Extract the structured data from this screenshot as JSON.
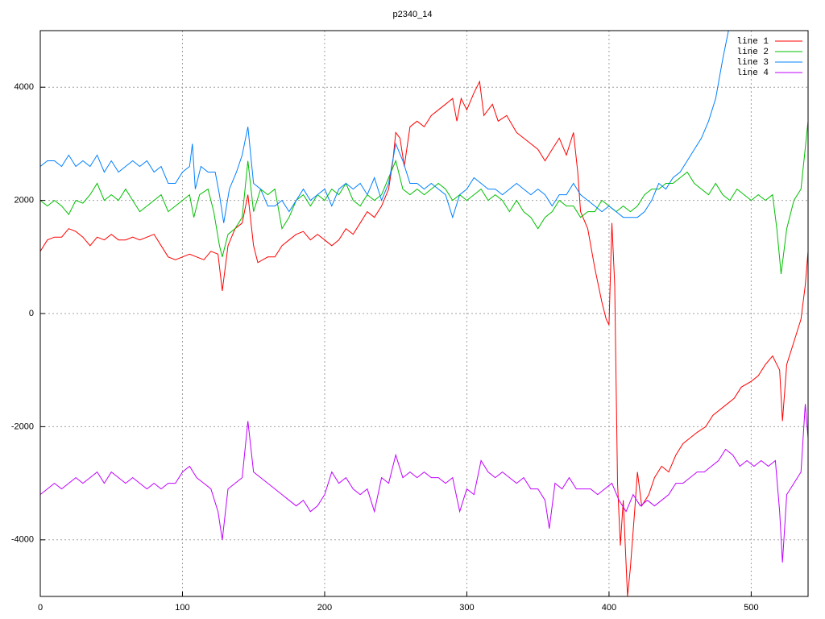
{
  "chart_data": {
    "type": "line",
    "title": "p2340_14",
    "xlim": [
      0,
      540
    ],
    "ylim": [
      -5000,
      5000
    ],
    "xticks": [
      0,
      100,
      200,
      300,
      400,
      500
    ],
    "yticks": [
      -4000,
      -2000,
      0,
      2000,
      4000
    ],
    "grid": true,
    "legend": "top right",
    "series": [
      {
        "name": "line 1",
        "color": "#ff0000",
        "x": [
          0,
          5,
          10,
          15,
          20,
          25,
          30,
          35,
          40,
          45,
          50,
          55,
          60,
          65,
          70,
          75,
          80,
          85,
          90,
          95,
          100,
          105,
          110,
          115,
          120,
          125,
          128,
          132,
          137,
          142,
          146,
          150,
          153,
          160,
          165,
          170,
          175,
          180,
          185,
          190,
          195,
          200,
          205,
          210,
          215,
          220,
          225,
          230,
          235,
          240,
          245,
          248,
          250,
          253,
          256,
          260,
          265,
          270,
          275,
          280,
          285,
          290,
          293,
          296,
          300,
          305,
          309,
          312,
          318,
          322,
          328,
          335,
          340,
          345,
          350,
          355,
          360,
          365,
          370,
          375,
          378,
          380,
          385,
          390,
          395,
          398,
          400,
          402,
          404,
          406,
          408,
          410,
          413,
          415,
          418,
          420,
          423,
          428,
          432,
          437,
          442,
          447,
          452,
          457,
          462,
          468,
          473,
          478,
          483,
          488,
          493,
          500,
          505,
          510,
          515,
          520,
          522,
          525,
          530,
          535,
          538,
          540
        ],
        "values": [
          1100,
          1300,
          1350,
          1350,
          1500,
          1450,
          1350,
          1200,
          1350,
          1300,
          1400,
          1300,
          1300,
          1350,
          1300,
          1350,
          1400,
          1200,
          1000,
          950,
          1000,
          1050,
          1000,
          950,
          1100,
          1050,
          400,
          1200,
          1500,
          1600,
          2100,
          1200,
          900,
          1000,
          1000,
          1200,
          1300,
          1400,
          1450,
          1300,
          1400,
          1300,
          1200,
          1300,
          1500,
          1400,
          1600,
          1800,
          1700,
          1900,
          2200,
          2700,
          3200,
          3100,
          2600,
          3300,
          3400,
          3300,
          3500,
          3600,
          3700,
          3800,
          3400,
          3800,
          3600,
          3900,
          4100,
          3500,
          3700,
          3400,
          3500,
          3200,
          3100,
          3000,
          2900,
          2700,
          2900,
          3100,
          2800,
          3200,
          2500,
          1800,
          1500,
          800,
          200,
          -100,
          -200,
          1600,
          500,
          -3000,
          -4100,
          -3300,
          -5000,
          -4500,
          -3500,
          -2800,
          -3400,
          -3200,
          -2900,
          -2700,
          -2800,
          -2500,
          -2300,
          -2200,
          -2100,
          -2000,
          -1800,
          -1700,
          -1600,
          -1500,
          -1300,
          -1200,
          -1100,
          -900,
          -750,
          -1000,
          -1900,
          -900,
          -500,
          -100,
          500,
          1100
        ]
      },
      {
        "name": "line 2",
        "color": "#00c000",
        "x": [
          0,
          5,
          10,
          15,
          20,
          25,
          30,
          35,
          40,
          45,
          50,
          55,
          60,
          65,
          70,
          75,
          80,
          85,
          90,
          95,
          100,
          105,
          108,
          112,
          118,
          122,
          126,
          128,
          132,
          137,
          142,
          146,
          150,
          155,
          160,
          165,
          170,
          175,
          180,
          185,
          190,
          195,
          200,
          205,
          210,
          215,
          220,
          225,
          230,
          235,
          240,
          245,
          250,
          255,
          260,
          265,
          270,
          275,
          280,
          285,
          290,
          295,
          300,
          305,
          310,
          315,
          320,
          325,
          330,
          335,
          340,
          345,
          350,
          355,
          360,
          365,
          370,
          375,
          380,
          385,
          390,
          395,
          400,
          405,
          410,
          415,
          420,
          425,
          430,
          435,
          440,
          445,
          450,
          455,
          460,
          465,
          470,
          475,
          480,
          485,
          490,
          495,
          500,
          505,
          510,
          515,
          518,
          521,
          525,
          530,
          535,
          540
        ],
        "values": [
          2000,
          1900,
          2000,
          1900,
          1750,
          2000,
          1950,
          2100,
          2300,
          2000,
          2100,
          2000,
          2200,
          2000,
          1800,
          1900,
          2000,
          2100,
          1800,
          1900,
          2000,
          2100,
          1700,
          2100,
          2200,
          1800,
          1200,
          1000,
          1400,
          1500,
          1700,
          2700,
          1800,
          2200,
          2100,
          2200,
          1500,
          1700,
          2000,
          2100,
          1900,
          2100,
          2000,
          2200,
          2100,
          2300,
          2000,
          1900,
          2100,
          2000,
          2100,
          2400,
          2700,
          2200,
          2100,
          2200,
          2100,
          2200,
          2300,
          2200,
          2000,
          2100,
          2000,
          2100,
          2200,
          2000,
          2100,
          2000,
          1800,
          2000,
          1800,
          1700,
          1500,
          1700,
          1800,
          2000,
          1900,
          1900,
          1700,
          1800,
          1800,
          2000,
          1900,
          1800,
          1900,
          1800,
          1900,
          2100,
          2200,
          2200,
          2300,
          2300,
          2400,
          2500,
          2300,
          2200,
          2100,
          2300,
          2100,
          2000,
          2200,
          2100,
          2000,
          2100,
          2000,
          2100,
          1500,
          700,
          1500,
          2000,
          2200,
          3400
        ]
      },
      {
        "name": "line 3",
        "color": "#0080ff",
        "x": [
          0,
          5,
          10,
          15,
          20,
          25,
          30,
          35,
          40,
          45,
          50,
          55,
          60,
          65,
          70,
          75,
          80,
          85,
          90,
          95,
          100,
          105,
          107,
          109,
          113,
          118,
          123,
          126,
          129,
          133,
          138,
          142,
          146,
          150,
          155,
          160,
          165,
          170,
          175,
          180,
          185,
          190,
          195,
          200,
          205,
          210,
          215,
          220,
          225,
          230,
          235,
          240,
          245,
          250,
          255,
          260,
          265,
          270,
          275,
          280,
          285,
          290,
          295,
          300,
          305,
          310,
          315,
          320,
          325,
          330,
          335,
          340,
          345,
          350,
          355,
          360,
          365,
          370,
          375,
          380,
          385,
          390,
          395,
          400,
          405,
          410,
          415,
          420,
          425,
          430,
          435,
          440,
          445,
          450,
          455,
          460,
          465,
          470,
          475,
          480,
          484
        ],
        "values": [
          2600,
          2700,
          2700,
          2600,
          2800,
          2600,
          2700,
          2600,
          2800,
          2500,
          2700,
          2500,
          2600,
          2700,
          2600,
          2700,
          2500,
          2600,
          2300,
          2300,
          2500,
          2600,
          3000,
          2200,
          2600,
          2500,
          2500,
          2100,
          1600,
          2200,
          2500,
          2800,
          3300,
          2300,
          2200,
          1900,
          1900,
          2000,
          1800,
          2000,
          2200,
          2000,
          2100,
          2200,
          1900,
          2200,
          2300,
          2200,
          2300,
          2100,
          2400,
          2000,
          2300,
          3000,
          2700,
          2300,
          2300,
          2200,
          2300,
          2200,
          2100,
          1700,
          2100,
          2200,
          2400,
          2300,
          2200,
          2200,
          2100,
          2200,
          2300,
          2200,
          2100,
          2200,
          2100,
          1900,
          2100,
          2100,
          2300,
          2100,
          2000,
          1900,
          1800,
          1900,
          1800,
          1700,
          1700,
          1700,
          1800,
          2000,
          2300,
          2200,
          2400,
          2500,
          2700,
          2900,
          3100,
          3400,
          3800,
          4500,
          5000
        ]
      },
      {
        "name": "line 4",
        "color": "#c000ff",
        "x": [
          0,
          5,
          10,
          15,
          20,
          25,
          30,
          35,
          40,
          45,
          50,
          55,
          60,
          65,
          70,
          75,
          80,
          85,
          90,
          95,
          100,
          105,
          110,
          115,
          120,
          125,
          128,
          132,
          137,
          142,
          146,
          150,
          155,
          160,
          165,
          170,
          175,
          180,
          185,
          190,
          195,
          200,
          205,
          210,
          215,
          220,
          225,
          230,
          235,
          240,
          245,
          250,
          255,
          260,
          265,
          270,
          275,
          280,
          285,
          290,
          295,
          300,
          305,
          310,
          315,
          320,
          325,
          330,
          335,
          340,
          345,
          350,
          355,
          358,
          362,
          367,
          372,
          377,
          382,
          387,
          392,
          397,
          402,
          407,
          412,
          417,
          422,
          427,
          432,
          437,
          442,
          447,
          452,
          457,
          462,
          467,
          472,
          477,
          482,
          487,
          492,
          497,
          502,
          507,
          512,
          517,
          520,
          522,
          525,
          530,
          535,
          538,
          540
        ],
        "values": [
          -3200,
          -3100,
          -3000,
          -3100,
          -3000,
          -2900,
          -3000,
          -2900,
          -2800,
          -3000,
          -2800,
          -2900,
          -3000,
          -2900,
          -3000,
          -3100,
          -3000,
          -3100,
          -3000,
          -3000,
          -2800,
          -2700,
          -2900,
          -3000,
          -3100,
          -3500,
          -4000,
          -3100,
          -3000,
          -2900,
          -1900,
          -2800,
          -2900,
          -3000,
          -3100,
          -3200,
          -3300,
          -3400,
          -3300,
          -3500,
          -3400,
          -3200,
          -2800,
          -3000,
          -2900,
          -3100,
          -3200,
          -3100,
          -3500,
          -2900,
          -3000,
          -2500,
          -2900,
          -2800,
          -2900,
          -2800,
          -2900,
          -2900,
          -3000,
          -2900,
          -3500,
          -3100,
          -3200,
          -2600,
          -2800,
          -2900,
          -2800,
          -2900,
          -3000,
          -2900,
          -3100,
          -3100,
          -3300,
          -3800,
          -3000,
          -3100,
          -2900,
          -3100,
          -3100,
          -3100,
          -3200,
          -3100,
          -3000,
          -3300,
          -3500,
          -3200,
          -3400,
          -3300,
          -3400,
          -3300,
          -3200,
          -3000,
          -3000,
          -2900,
          -2800,
          -2800,
          -2700,
          -2600,
          -2400,
          -2500,
          -2700,
          -2600,
          -2700,
          -2600,
          -2700,
          -2600,
          -3500,
          -4400,
          -3200,
          -3000,
          -2800,
          -1600,
          -2200
        ]
      }
    ]
  }
}
